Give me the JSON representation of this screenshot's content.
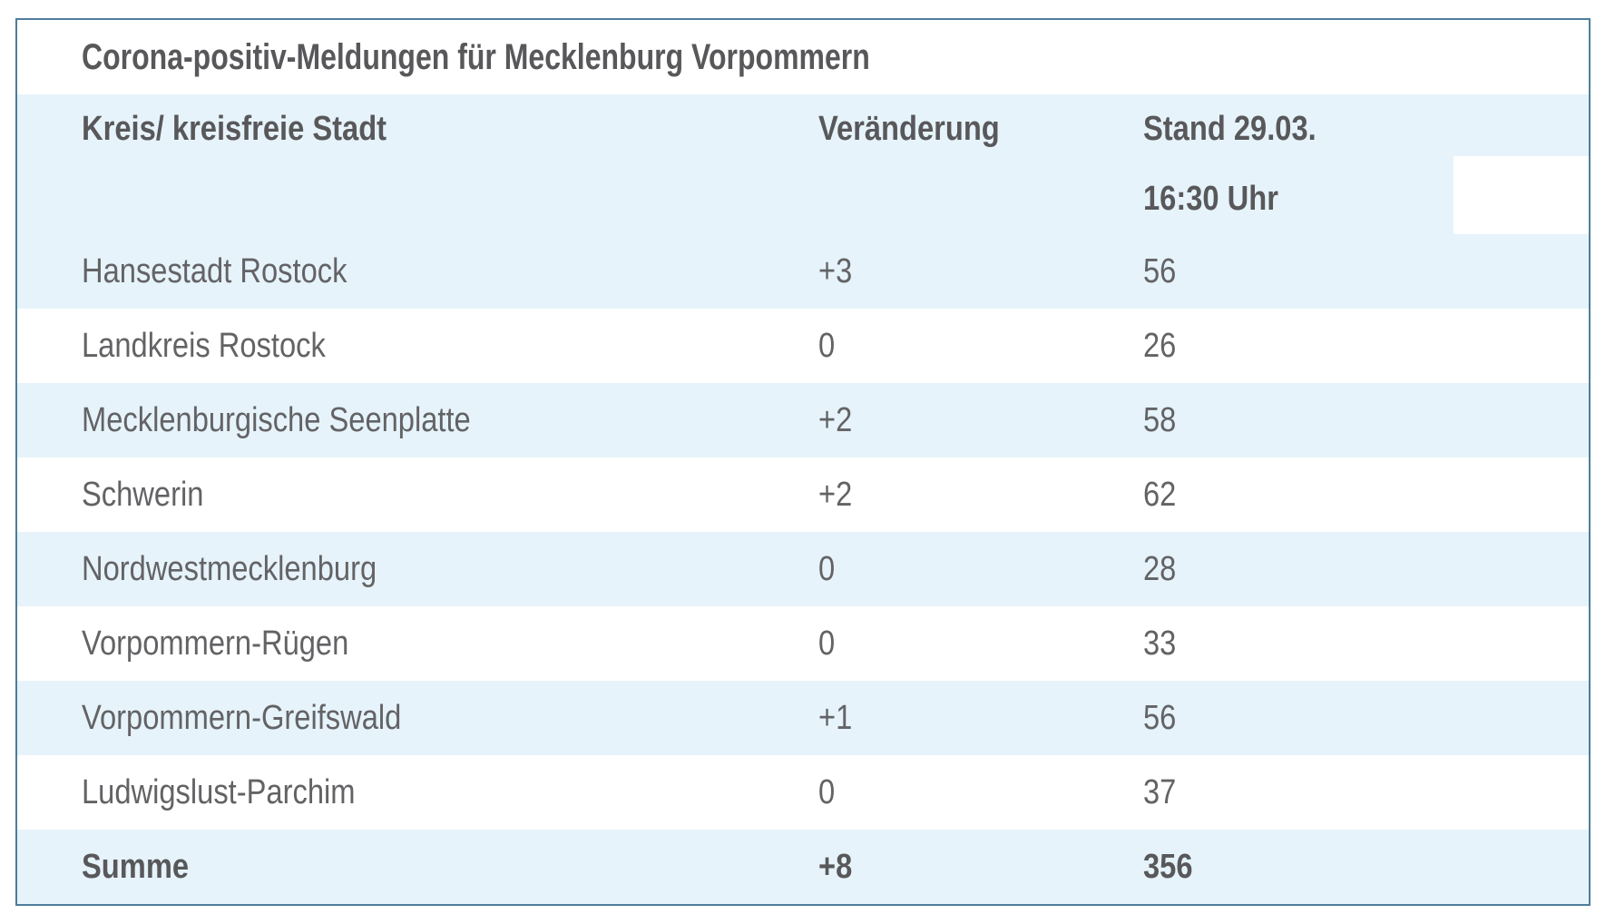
{
  "chart_data": {
    "type": "table",
    "title": "Corona-positiv-Meldungen für Mecklenburg Vorpommern",
    "columns": [
      "Kreis/ kreisfreie Stadt",
      "Veränderung",
      "Stand 29.03. 16:30 Uhr"
    ],
    "header": {
      "col1": "Kreis/ kreisfreie Stadt",
      "col2": "Veränderung",
      "col3_line1": "Stand 29.03.",
      "col3_line2": "16:30 Uhr"
    },
    "rows": [
      {
        "region": "Hansestadt Rostock",
        "change": "+3",
        "count": "56"
      },
      {
        "region": "Landkreis Rostock",
        "change": "0",
        "count": "26"
      },
      {
        "region": "Mecklenburgische Seenplatte",
        "change": "+2",
        "count": "58"
      },
      {
        "region": "Schwerin",
        "change": "+2",
        "count": "62"
      },
      {
        "region": "Nordwestmecklenburg",
        "change": "0",
        "count": "28"
      },
      {
        "region": "Vorpommern-Rügen",
        "change": "0",
        "count": "33"
      },
      {
        "region": "Vorpommern-Greifswald",
        "change": "+1",
        "count": "56"
      },
      {
        "region": "Ludwigslust-Parchim",
        "change": "0",
        "count": "37"
      }
    ],
    "total": {
      "region": "Summe",
      "change": "+8",
      "count": "356"
    },
    "layout": {
      "zebra_striping": true,
      "first_data_row_shaded": true,
      "legend_position": "none",
      "grid": false
    },
    "colors": {
      "row_shade_blue": "#e6f3fa",
      "table_border": "#4d7e9a",
      "heading_text": "#58585b",
      "body_text": "#636366",
      "page_background": "#ffffff"
    }
  }
}
